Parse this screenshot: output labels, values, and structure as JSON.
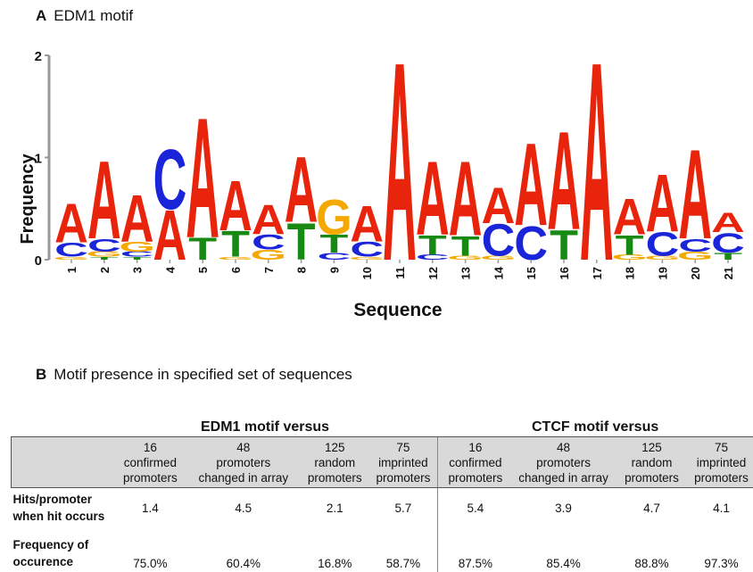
{
  "panel_a": {
    "letter": "A",
    "title": "EDM1 motif"
  },
  "panel_b": {
    "letter": "B",
    "title": "Motif presence in specified set of sequences"
  },
  "chart_data": {
    "type": "sequence-logo",
    "title": "EDM1 motif",
    "xlabel": "Sequence",
    "ylabel": "Frequency",
    "ylim": [
      0,
      2
    ],
    "yticks": [
      "0",
      "1",
      "2"
    ],
    "colors": {
      "A": "#e8250c",
      "C": "#1a24d9",
      "G": "#f4a800",
      "T": "#188a14"
    },
    "positions": [
      {
        "pos": "1",
        "letters": [
          [
            "G",
            0.03
          ],
          [
            "C",
            0.14
          ],
          [
            "A",
            0.39
          ]
        ]
      },
      {
        "pos": "2",
        "letters": [
          [
            "T",
            0.03
          ],
          [
            "G",
            0.05
          ],
          [
            "C",
            0.13
          ],
          [
            "A",
            0.78
          ]
        ]
      },
      {
        "pos": "3",
        "letters": [
          [
            "T",
            0.03
          ],
          [
            "C",
            0.05
          ],
          [
            "G",
            0.1
          ],
          [
            "A",
            0.47
          ]
        ]
      },
      {
        "pos": "4",
        "letters": [
          [
            "A",
            0.5
          ],
          [
            "C",
            0.6
          ]
        ]
      },
      {
        "pos": "5",
        "letters": [
          [
            "T",
            0.22
          ],
          [
            "A",
            1.21
          ]
        ]
      },
      {
        "pos": "6",
        "letters": [
          [
            "G",
            0.03
          ],
          [
            "T",
            0.26
          ],
          [
            "A",
            0.5
          ]
        ]
      },
      {
        "pos": "7",
        "letters": [
          [
            "G",
            0.1
          ],
          [
            "C",
            0.15
          ],
          [
            "A",
            0.3
          ]
        ]
      },
      {
        "pos": "8",
        "letters": [
          [
            "T",
            0.37
          ],
          [
            "A",
            0.66
          ]
        ]
      },
      {
        "pos": "9",
        "letters": [
          [
            "C",
            0.07
          ],
          [
            "T",
            0.18
          ],
          [
            "G",
            0.35
          ]
        ]
      },
      {
        "pos": "10",
        "letters": [
          [
            "G",
            0.03
          ],
          [
            "C",
            0.15
          ],
          [
            "A",
            0.36
          ]
        ]
      },
      {
        "pos": "11",
        "letters": [
          [
            "A",
            2.0
          ]
        ]
      },
      {
        "pos": "12",
        "letters": [
          [
            "C",
            0.05
          ],
          [
            "T",
            0.2
          ],
          [
            "A",
            0.74
          ]
        ]
      },
      {
        "pos": "13",
        "letters": [
          [
            "G",
            0.04
          ],
          [
            "T",
            0.2
          ],
          [
            "A",
            0.75
          ]
        ]
      },
      {
        "pos": "14",
        "letters": [
          [
            "G",
            0.04
          ],
          [
            "C",
            0.32
          ],
          [
            "A",
            0.36
          ]
        ]
      },
      {
        "pos": "15",
        "letters": [
          [
            "C",
            0.34
          ],
          [
            "A",
            0.83
          ]
        ]
      },
      {
        "pos": "16",
        "letters": [
          [
            "T",
            0.3
          ],
          [
            "A",
            0.99
          ]
        ]
      },
      {
        "pos": "17",
        "letters": [
          [
            "A",
            2.0
          ]
        ]
      },
      {
        "pos": "18",
        "letters": [
          [
            "G",
            0.05
          ],
          [
            "T",
            0.2
          ],
          [
            "A",
            0.36
          ]
        ]
      },
      {
        "pos": "19",
        "letters": [
          [
            "G",
            0.04
          ],
          [
            "C",
            0.24
          ],
          [
            "A",
            0.58
          ]
        ]
      },
      {
        "pos": "20",
        "letters": [
          [
            "G",
            0.08
          ],
          [
            "C",
            0.13
          ],
          [
            "A",
            0.9
          ]
        ]
      },
      {
        "pos": "21",
        "letters": [
          [
            "T",
            0.07
          ],
          [
            "C",
            0.2
          ],
          [
            "A",
            0.2
          ]
        ]
      }
    ]
  },
  "table": {
    "group_headers": [
      "EDM1 motif versus",
      "CTCF motif versus"
    ],
    "columns": [
      {
        "line1": "16",
        "line2": "confirmed",
        "line3": "promoters"
      },
      {
        "line1": "48",
        "line2": "promoters",
        "line3": "changed in array"
      },
      {
        "line1": "125",
        "line2": "random",
        "line3": "promoters"
      },
      {
        "line1": "75",
        "line2": "imprinted",
        "line3": "promoters"
      },
      {
        "line1": "16",
        "line2": "confirmed",
        "line3": "promoters"
      },
      {
        "line1": "48",
        "line2": "promoters",
        "line3": "changed in array"
      },
      {
        "line1": "125",
        "line2": "random",
        "line3": "promoters"
      },
      {
        "line1": "75",
        "line2": "imprinted",
        "line3": "promoters"
      }
    ],
    "rows": [
      {
        "label_line1": "Hits/promoter",
        "label_line2": "when hit occurs",
        "values": [
          "1.4",
          "4.5",
          "2.1",
          "5.7",
          "5.4",
          "3.9",
          "4.7",
          "4.1"
        ]
      },
      {
        "label_line1": "Frequency of",
        "label_line2": "occurence",
        "values": [
          "75.0%",
          "60.4%",
          "16.8%",
          "58.7%",
          "87.5%",
          "85.4%",
          "88.8%",
          "97.3%"
        ]
      }
    ]
  }
}
